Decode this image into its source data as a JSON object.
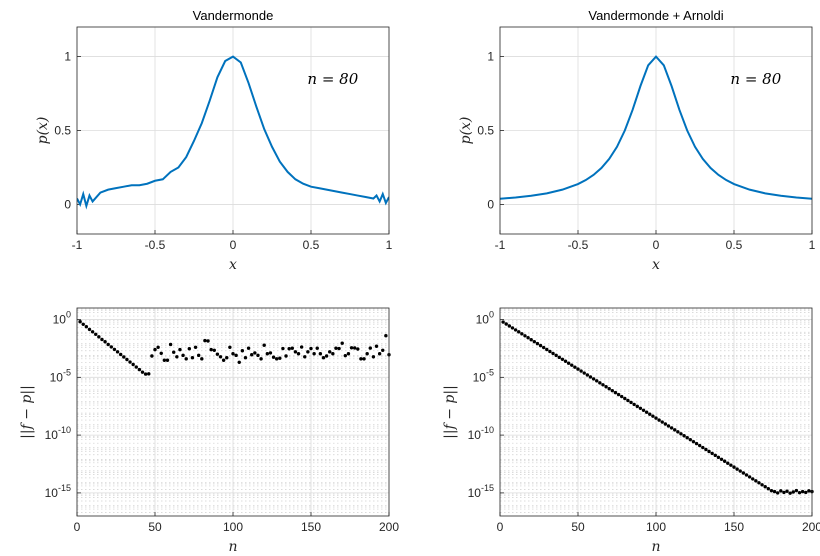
{
  "chart_data": [
    {
      "type": "line",
      "title": "Vandermonde",
      "xlabel": "x",
      "ylabel": "p(x)",
      "xlim": [
        -1,
        1
      ],
      "ylim": [
        -0.2,
        1.2
      ],
      "xticks": [
        -1,
        -0.5,
        0,
        0.5,
        1
      ],
      "xtick_labels": [
        "-1",
        "-0.5",
        "0",
        "0.5",
        "1"
      ],
      "yticks": [
        0,
        0.5,
        1
      ],
      "ytick_labels": [
        "0",
        "0.5",
        "1"
      ],
      "grid": true,
      "annotation": "n = 80",
      "color": "#0072BD",
      "series": [
        {
          "formula": "1/(1+25x^2) plus high-frequency oscillations near the endpoints",
          "x": [
            -1,
            -0.98,
            -0.96,
            -0.94,
            -0.92,
            -0.9,
            -0.85,
            -0.8,
            -0.75,
            -0.7,
            -0.65,
            -0.6,
            -0.55,
            -0.5,
            -0.45,
            -0.4,
            -0.35,
            -0.3,
            -0.25,
            -0.2,
            -0.15,
            -0.1,
            -0.05,
            0,
            0.05,
            0.1,
            0.15,
            0.2,
            0.25,
            0.3,
            0.35,
            0.4,
            0.45,
            0.5,
            0.55,
            0.6,
            0.65,
            0.7,
            0.75,
            0.8,
            0.85,
            0.9,
            0.92,
            0.94,
            0.96,
            0.98,
            1
          ],
          "y": [
            0.04,
            0.0,
            0.07,
            -0.01,
            0.06,
            0.02,
            0.08,
            0.1,
            0.11,
            0.12,
            0.13,
            0.13,
            0.14,
            0.16,
            0.17,
            0.22,
            0.25,
            0.32,
            0.43,
            0.55,
            0.7,
            0.86,
            0.97,
            1.0,
            0.96,
            0.82,
            0.66,
            0.51,
            0.39,
            0.29,
            0.22,
            0.17,
            0.14,
            0.12,
            0.11,
            0.1,
            0.09,
            0.08,
            0.07,
            0.06,
            0.05,
            0.04,
            0.06,
            0.02,
            0.07,
            0.01,
            0.05
          ]
        }
      ]
    },
    {
      "type": "line",
      "title": "Vandermonde + Arnoldi",
      "xlabel": "x",
      "ylabel": "p(x)",
      "xlim": [
        -1,
        1
      ],
      "ylim": [
        -0.2,
        1.2
      ],
      "xticks": [
        -1,
        -0.5,
        0,
        0.5,
        1
      ],
      "xtick_labels": [
        "-1",
        "-0.5",
        "0",
        "0.5",
        "1"
      ],
      "yticks": [
        0,
        0.5,
        1
      ],
      "ytick_labels": [
        "0",
        "0.5",
        "1"
      ],
      "grid": true,
      "annotation": "n = 80",
      "color": "#0072BD",
      "series": [
        {
          "formula": "1/(1+25x^2)",
          "x": [
            -1,
            -0.9,
            -0.8,
            -0.7,
            -0.6,
            -0.5,
            -0.45,
            -0.4,
            -0.35,
            -0.3,
            -0.25,
            -0.2,
            -0.15,
            -0.1,
            -0.05,
            0,
            0.05,
            0.1,
            0.15,
            0.2,
            0.25,
            0.3,
            0.35,
            0.4,
            0.45,
            0.5,
            0.6,
            0.7,
            0.8,
            0.9,
            1
          ],
          "y": [
            0.038,
            0.047,
            0.059,
            0.075,
            0.1,
            0.138,
            0.165,
            0.2,
            0.246,
            0.308,
            0.39,
            0.5,
            0.64,
            0.8,
            0.941,
            1.0,
            0.941,
            0.8,
            0.64,
            0.5,
            0.39,
            0.308,
            0.246,
            0.2,
            0.165,
            0.138,
            0.1,
            0.075,
            0.059,
            0.047,
            0.038
          ]
        }
      ]
    },
    {
      "type": "scatter",
      "title": "",
      "xlabel": "n",
      "ylabel": "||f − p||",
      "xlim": [
        0,
        200
      ],
      "ylim": [
        1e-17,
        10
      ],
      "yscale": "log",
      "xticks": [
        0,
        50,
        100,
        150,
        200
      ],
      "xtick_labels": [
        "0",
        "50",
        "100",
        "150",
        "200"
      ],
      "yticks": [
        1,
        1e-05,
        1e-10,
        1e-15
      ],
      "ytick_labels": [
        "10^0",
        "10^-5",
        "10^-10",
        "10^-15"
      ],
      "grid": true,
      "marker_color": "#000000",
      "series": [
        {
          "x": [
            2,
            4,
            6,
            8,
            10,
            12,
            14,
            16,
            18,
            20,
            22,
            24,
            26,
            28,
            30,
            32,
            34,
            36,
            38,
            40,
            42,
            44,
            46,
            48,
            50,
            52,
            54,
            56,
            58,
            60,
            62,
            64,
            66,
            68,
            70,
            72,
            74,
            76,
            78,
            80,
            82,
            84,
            86,
            88,
            90,
            92,
            94,
            96,
            98,
            100,
            102,
            104,
            106,
            108,
            110,
            112,
            114,
            116,
            118,
            120,
            122,
            124,
            126,
            128,
            130,
            132,
            134,
            136,
            138,
            140,
            142,
            144,
            146,
            148,
            150,
            152,
            154,
            156,
            158,
            160,
            162,
            164,
            166,
            168,
            170,
            172,
            174,
            176,
            178,
            180,
            182,
            184,
            186,
            188,
            190,
            192,
            194,
            196,
            198,
            200
          ],
          "y": [
            0.65,
            0.39,
            0.24,
            0.14,
            0.087,
            0.053,
            0.032,
            0.019,
            0.012,
            0.007,
            0.0043,
            0.0026,
            0.0016,
            0.00095,
            0.00058,
            0.00035,
            0.00021,
            0.00013,
            7.8e-05,
            4.7e-05,
            2.8e-05,
            1.9e-05,
            2e-05,
            0.0007,
            0.0025,
            0.004,
            0.0012,
            0.0003,
            0.0003,
            0.007,
            0.0015,
            0.0006,
            0.0025,
            0.0008,
            0.0004,
            0.003,
            0.0005,
            0.004,
            0.0008,
            0.0004,
            0.015,
            0.014,
            0.0025,
            0.0022,
            0.001,
            0.0006,
            0.0003,
            0.0005,
            0.004,
            0.0011,
            0.0008,
            0.0002,
            0.002,
            0.0005,
            0.0033,
            0.0009,
            0.0013,
            0.0008,
            0.0004,
            0.006,
            0.0011,
            0.0013,
            0.00055,
            0.0004,
            0.00045,
            0.0031,
            0.0007,
            0.003,
            0.0033,
            0.0016,
            0.0011,
            0.0042,
            0.0006,
            0.0016,
            0.0031,
            0.0011,
            0.0033,
            0.0011,
            0.0005,
            0.0007,
            0.0016,
            0.0011,
            0.0033,
            0.0031,
            0.009,
            0.00075,
            0.0011,
            0.0036,
            0.0035,
            0.0028,
            0.0004,
            0.0004,
            0.0011,
            0.0034,
            0.0006,
            0.0049,
            0.0011,
            0.0022,
            0.04,
            0.0009
          ]
        }
      ]
    },
    {
      "type": "scatter",
      "title": "",
      "xlabel": "n",
      "ylabel": "||f − p||",
      "xlim": [
        0,
        200
      ],
      "ylim": [
        1e-17,
        10
      ],
      "yscale": "log",
      "xticks": [
        0,
        50,
        100,
        150,
        200
      ],
      "xtick_labels": [
        "0",
        "50",
        "100",
        "150",
        "200"
      ],
      "yticks": [
        1,
        1e-05,
        1e-10,
        1e-15
      ],
      "ytick_labels": [
        "10^0",
        "10^-5",
        "10^-10",
        "10^-15"
      ],
      "grid": true,
      "marker_color": "#000000",
      "series": [
        {
          "formula": "0.9 * 0.822^n down to n≈176, then a plateau near 1.2e-15",
          "x_start": 2,
          "x_end": 200,
          "x_step": 2,
          "y_decay_base": 0.9,
          "y_decay_ratio": 0.822,
          "plateau": 1.2e-15,
          "plateau_noise": [
            1.3e-15,
            1e-15,
            1.5e-15,
            1.1e-15,
            1.4e-15,
            9.5e-16,
            1.2e-15,
            1.6e-15,
            1.05e-15,
            1.3e-15,
            1.1e-15,
            1.5e-15
          ]
        }
      ]
    }
  ]
}
